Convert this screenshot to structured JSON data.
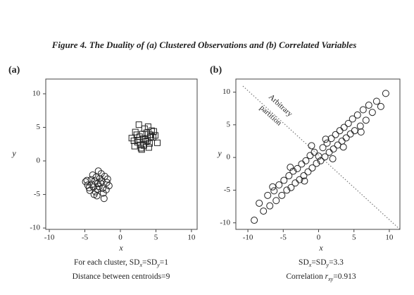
{
  "title": "Figure 4. The Duality of (a) Clustered Observations and (b) Correlated Variables",
  "chart_data": [
    {
      "type": "scatter",
      "panel": "(a)",
      "x_label": "x",
      "y_label": "y",
      "xlim": [
        -10.5,
        10.8
      ],
      "ylim": [
        -10.2,
        12.2
      ],
      "xticks": [
        -10,
        -5,
        0,
        5,
        10
      ],
      "yticks": [
        -10,
        -5,
        0,
        5,
        10
      ],
      "series": [
        {
          "marker": "circle",
          "color": "#222",
          "x": [
            -3.2,
            -4.1,
            -2.5,
            -3.8,
            -2.9,
            -1.9,
            -4.6,
            -3.5,
            -2.2,
            -3.0,
            -4.3,
            -2.7,
            -3.6,
            -1.6,
            -4.9,
            -3.3,
            -2.4,
            -3.9,
            -2.0,
            -4.4,
            -3.1,
            -2.8,
            -3.7,
            -1.8,
            -4.0,
            -3.4,
            -2.6,
            -3.2,
            -4.7,
            -2.3
          ],
          "values": [
            -3.4,
            -2.8,
            -4.1,
            -3.9,
            -2.6,
            -3.2,
            -3.6,
            -4.6,
            -2.3,
            -3.8,
            -4.4,
            -1.9,
            -3.0,
            -3.7,
            -3.1,
            -5.2,
            -4.8,
            -2.1,
            -4.3,
            -4.0,
            -1.5,
            -3.3,
            -5.0,
            -2.7,
            -3.5,
            -2.4,
            -3.0,
            -4.2,
            -2.9,
            -5.6
          ]
        },
        {
          "marker": "square",
          "color": "#222",
          "x": [
            3.2,
            2.3,
            4.1,
            2.8,
            3.7,
            4.6,
            1.9,
            3.4,
            4.0,
            2.5,
            3.0,
            4.9,
            2.1,
            3.6,
            4.4,
            2.7,
            3.3,
            1.6,
            4.2,
            3.9,
            2.4,
            3.1,
            5.2,
            2.9,
            3.5,
            4.7,
            2.0,
            3.8,
            2.6,
            4.3
          ],
          "values": [
            3.3,
            3.9,
            2.6,
            2.4,
            4.2,
            3.5,
            3.0,
            4.8,
            2.0,
            3.1,
            1.7,
            3.8,
            4.3,
            2.9,
            4.5,
            3.6,
            2.3,
            3.4,
            3.9,
            5.1,
            2.8,
            4.0,
            2.7,
            1.9,
            3.2,
            4.4,
            2.2,
            3.0,
            5.4,
            3.6
          ]
        }
      ],
      "caption_lines": [
        [
          {
            "text": "For each cluster, SD"
          },
          {
            "text": "x",
            "sub": true,
            "italic": true
          },
          {
            "text": "=SD"
          },
          {
            "text": "y",
            "sub": true,
            "italic": true
          },
          {
            "text": "=1"
          }
        ],
        [
          {
            "text": "Distance between centroids=9"
          }
        ]
      ]
    },
    {
      "type": "scatter",
      "panel": "(b)",
      "x_label": "x",
      "y_label": "y",
      "xlim": [
        -11.7,
        11.5
      ],
      "ylim": [
        -11,
        12
      ],
      "xticks": [
        -10,
        -5,
        0,
        5,
        10
      ],
      "yticks": [
        -10,
        -5,
        0,
        5,
        10
      ],
      "annotation": [
        "Arbitrary",
        "partition"
      ],
      "series": [
        {
          "marker": "circle",
          "color": "#222",
          "x": [
            -9.1,
            -8.4,
            -7.8,
            -7.2,
            -6.9,
            -6.3,
            -6.0,
            -5.6,
            -5.2,
            -4.9,
            -4.5,
            -4.2,
            -3.9,
            -3.6,
            -3.3,
            -3.0,
            -2.7,
            -2.4,
            -2.1,
            -1.8,
            -1.5,
            -1.2,
            -0.9,
            -0.6,
            -0.3,
            0.0,
            0.3,
            0.6,
            0.9,
            1.2,
            1.5,
            1.8,
            2.1,
            2.4,
            2.7,
            3.0,
            3.3,
            3.6,
            3.9,
            4.2,
            4.5,
            4.8,
            5.1,
            5.5,
            5.9,
            6.3,
            6.7,
            7.1,
            7.6,
            8.2,
            8.8,
            9.5,
            -4.0,
            -2.0,
            1.0,
            3.5,
            -6.5,
            6.0,
            -1.0,
            2.0
          ],
          "values": [
            -9.6,
            -7.0,
            -8.2,
            -5.8,
            -7.4,
            -5.1,
            -6.6,
            -4.2,
            -5.8,
            -3.5,
            -5.0,
            -2.8,
            -4.6,
            -2.1,
            -3.9,
            -1.7,
            -3.4,
            -1.0,
            -2.8,
            -0.5,
            -2.2,
            0.3,
            -1.6,
            0.8,
            -0.9,
            0.2,
            -0.5,
            1.5,
            0.1,
            2.2,
            0.8,
            2.9,
            1.3,
            3.5,
            1.9,
            4.1,
            2.5,
            4.6,
            3.0,
            5.2,
            3.6,
            5.9,
            4.1,
            6.5,
            4.8,
            7.3,
            5.7,
            8.0,
            6.9,
            8.6,
            7.8,
            9.8,
            -1.5,
            -3.6,
            2.8,
            1.6,
            -4.5,
            3.9,
            1.8,
            -0.2
          ]
        }
      ],
      "caption_lines": [
        [
          {
            "text": "SD"
          },
          {
            "text": "x",
            "sub": true,
            "italic": true
          },
          {
            "text": "=SD"
          },
          {
            "text": "y",
            "sub": true,
            "italic": true
          },
          {
            "text": "=3.3"
          }
        ],
        [
          {
            "text": "Correlation "
          },
          {
            "text": "r",
            "italic": true
          },
          {
            "text": "xy",
            "sub": true,
            "italic": true
          },
          {
            "text": "=0.913"
          }
        ]
      ]
    }
  ]
}
